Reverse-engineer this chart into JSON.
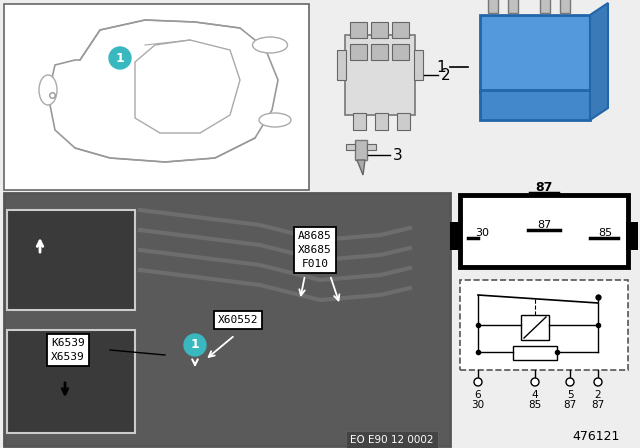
{
  "doc_number": "476121",
  "eo_code": "EO E90 12 0002",
  "bg_color": "#eeeeee",
  "teal": "#3ab8c0",
  "relay_blue": "#5599dd",
  "relay_blue2": "#4488cc",
  "label2": "2",
  "label3": "3",
  "label1": "1",
  "connector_labels": "A8685\nX8685\nF010",
  "connector2_label": "X60552",
  "connector3_label": "K6539\nX6539",
  "pin_numbers_top": [
    "6",
    "4",
    "5",
    "2"
  ],
  "pin_numbers_bot": [
    "30",
    "85",
    "87",
    "87"
  ]
}
